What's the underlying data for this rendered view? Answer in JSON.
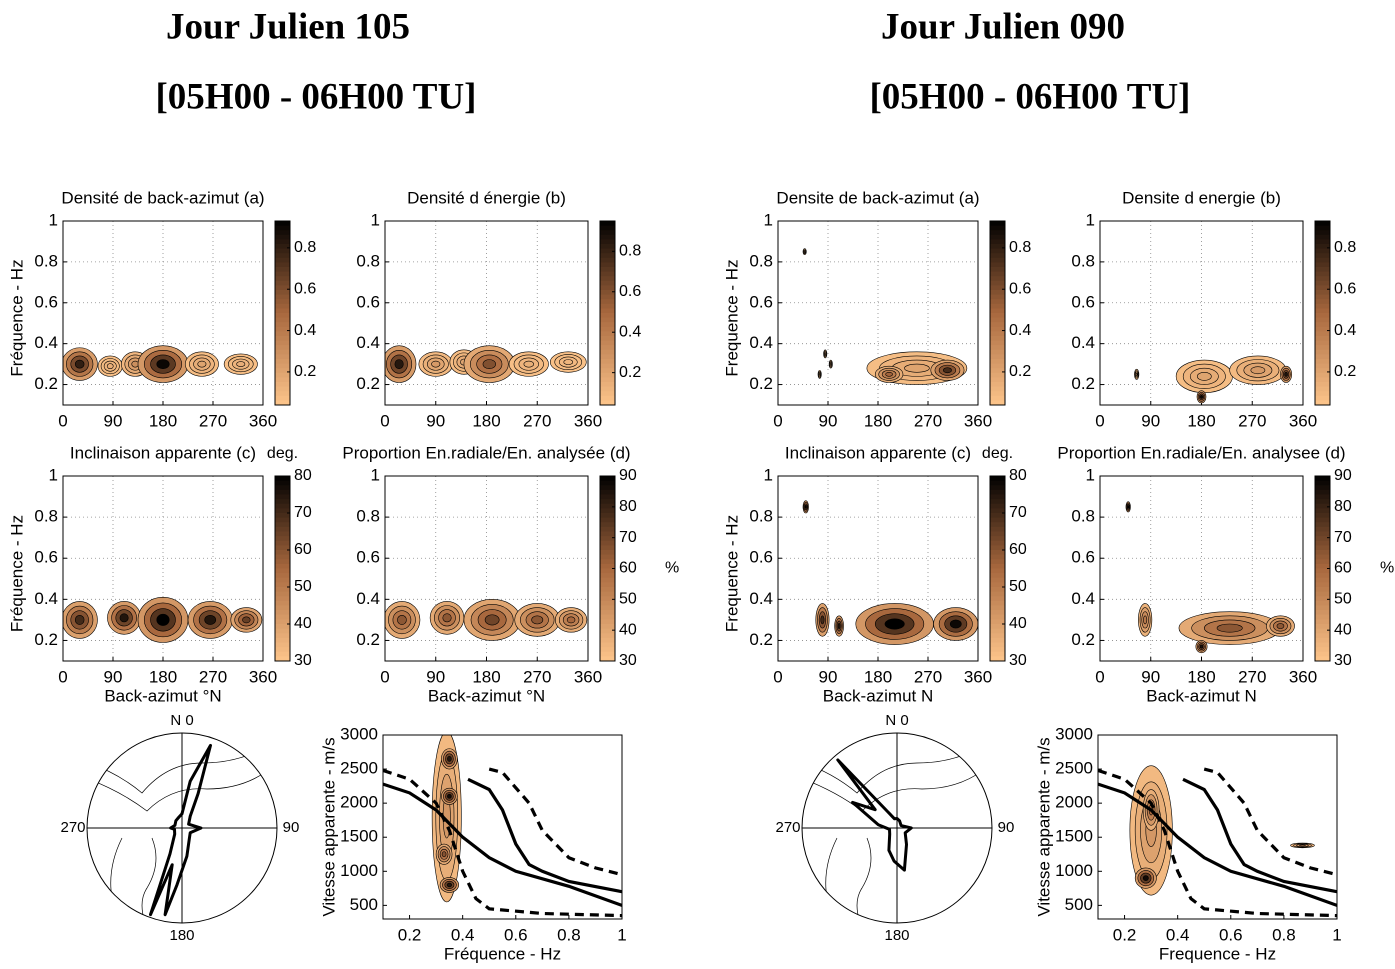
{
  "titles": [
    {
      "title": "Jour Julien 105",
      "subtitle": "[05H00 - 06H00 TU]"
    },
    {
      "title": "Jour Julien 090",
      "subtitle": "[05H00 - 06H00 TU]"
    }
  ],
  "chart_data": [
    {
      "type": "contour",
      "title": "Densité de back-azimut (a)",
      "ylabel": "Fréquence - Hz",
      "xlim": [
        0,
        360
      ],
      "xticks": [
        0,
        90,
        180,
        270,
        360
      ],
      "ylim": [
        0.1,
        1
      ],
      "yticks": [
        0.2,
        0.4,
        0.6,
        0.8,
        1
      ],
      "grid": true,
      "clim": [
        0.04,
        0.93
      ],
      "cticks": [
        0.2,
        0.4,
        0.6,
        0.8
      ],
      "colormap": [
        "#fdc58b",
        "#a8683e",
        "#000000"
      ],
      "blobs": [
        {
          "x": 30,
          "y": 0.3,
          "rx": 32,
          "ry": 0.08,
          "level": 0.8
        },
        {
          "x": 85,
          "y": 0.29,
          "rx": 22,
          "ry": 0.05,
          "level": 0.15
        },
        {
          "x": 130,
          "y": 0.3,
          "rx": 25,
          "ry": 0.06,
          "level": 0.3
        },
        {
          "x": 180,
          "y": 0.3,
          "rx": 45,
          "ry": 0.09,
          "level": 0.9
        },
        {
          "x": 250,
          "y": 0.3,
          "rx": 30,
          "ry": 0.06,
          "level": 0.2
        },
        {
          "x": 320,
          "y": 0.3,
          "rx": 30,
          "ry": 0.05,
          "level": 0.15
        }
      ]
    },
    {
      "type": "contour",
      "title": "Densité d énergie (b)",
      "xlim": [
        0,
        360
      ],
      "xticks": [
        0,
        90,
        180,
        270,
        360
      ],
      "ylim": [
        0.1,
        1
      ],
      "yticks": [
        0.2,
        0.4,
        0.6,
        0.8,
        1
      ],
      "grid": true,
      "clim": [
        0.04,
        0.95
      ],
      "cticks": [
        0.2,
        0.4,
        0.6,
        0.8
      ],
      "colormap": [
        "#fdc58b",
        "#a8683e",
        "#000000"
      ],
      "blobs": [
        {
          "x": 25,
          "y": 0.3,
          "rx": 30,
          "ry": 0.09,
          "level": 0.85
        },
        {
          "x": 90,
          "y": 0.3,
          "rx": 30,
          "ry": 0.06,
          "level": 0.25
        },
        {
          "x": 140,
          "y": 0.31,
          "rx": 25,
          "ry": 0.06,
          "level": 0.2
        },
        {
          "x": 185,
          "y": 0.3,
          "rx": 45,
          "ry": 0.09,
          "level": 0.6
        },
        {
          "x": 255,
          "y": 0.3,
          "rx": 35,
          "ry": 0.06,
          "level": 0.15
        },
        {
          "x": 325,
          "y": 0.31,
          "rx": 32,
          "ry": 0.05,
          "level": 0.12
        }
      ]
    },
    {
      "type": "contour",
      "title": "Inclinaison apparente (c)",
      "ylabel": "Fréquence - Hz",
      "xlabel": "Back-azimut °N",
      "xlim": [
        0,
        360
      ],
      "xticks": [
        0,
        90,
        180,
        270,
        360
      ],
      "ylim": [
        0.1,
        1
      ],
      "yticks": [
        0.2,
        0.4,
        0.6,
        0.8,
        1
      ],
      "grid": true,
      "clim": [
        30,
        80
      ],
      "cticks": [
        30,
        40,
        50,
        60,
        70,
        80
      ],
      "clabel": "deg.",
      "clabel_loc": "top",
      "colormap": [
        "#fdc58b",
        "#a8683e",
        "#000000"
      ],
      "blobs": [
        {
          "x": 30,
          "y": 0.3,
          "rx": 32,
          "ry": 0.09,
          "level": 70
        },
        {
          "x": 110,
          "y": 0.31,
          "rx": 30,
          "ry": 0.08,
          "level": 75
        },
        {
          "x": 180,
          "y": 0.3,
          "rx": 45,
          "ry": 0.11,
          "level": 80
        },
        {
          "x": 265,
          "y": 0.3,
          "rx": 40,
          "ry": 0.09,
          "level": 75
        },
        {
          "x": 330,
          "y": 0.3,
          "rx": 28,
          "ry": 0.06,
          "level": 65
        }
      ]
    },
    {
      "type": "contour",
      "title": "Proportion En.radiale/En. analysée (d)",
      "xlabel": "Back-azimut °N",
      "xlim": [
        0,
        360
      ],
      "xticks": [
        0,
        90,
        180,
        270,
        360
      ],
      "ylim": [
        0.1,
        1
      ],
      "yticks": [
        0.2,
        0.4,
        0.6,
        0.8,
        1
      ],
      "grid": true,
      "clim": [
        30,
        90
      ],
      "cticks": [
        30,
        40,
        50,
        60,
        70,
        80,
        90
      ],
      "clabel": "%",
      "clabel_loc": "right",
      "colormap": [
        "#fdc58b",
        "#a8683e",
        "#000000"
      ],
      "blobs": [
        {
          "x": 30,
          "y": 0.3,
          "rx": 32,
          "ry": 0.09,
          "level": 65
        },
        {
          "x": 110,
          "y": 0.31,
          "rx": 30,
          "ry": 0.08,
          "level": 65
        },
        {
          "x": 190,
          "y": 0.3,
          "rx": 50,
          "ry": 0.1,
          "level": 70
        },
        {
          "x": 270,
          "y": 0.3,
          "rx": 40,
          "ry": 0.08,
          "level": 65
        },
        {
          "x": 330,
          "y": 0.3,
          "rx": 28,
          "ry": 0.06,
          "level": 60
        }
      ]
    },
    {
      "type": "polar",
      "axis_labels": [
        "N 0",
        "90",
        "180",
        "270"
      ],
      "rlim": [
        0,
        1
      ],
      "rose": {
        "azimuth": [
          0,
          10,
          19,
          25,
          35,
          60,
          90,
          120,
          150,
          170,
          185,
          191,
          195,
          200,
          205,
          230,
          260,
          270,
          290,
          320,
          345
        ],
        "radius": [
          0.15,
          0.5,
          0.92,
          0.4,
          0.15,
          0.08,
          0.2,
          0.1,
          0.15,
          0.3,
          0.6,
          0.93,
          0.4,
          0.97,
          0.3,
          0.1,
          0.08,
          0.12,
          0.08,
          0.1,
          0.12
        ]
      }
    },
    {
      "type": "line",
      "xlabel": "Fréquence - Hz",
      "ylabel": "Vitesse apparente - m/s",
      "xlim": [
        0.1,
        1
      ],
      "xticks": [
        0.2,
        0.4,
        0.6,
        0.8,
        1
      ],
      "ylim": [
        300,
        3000
      ],
      "yticks": [
        500,
        1000,
        1500,
        2000,
        2500,
        3000
      ],
      "clim": [
        0,
        1
      ],
      "colormap": [
        "#fdc58b",
        "#a8683e",
        "#000000"
      ],
      "blobs": [
        {
          "x": 0.34,
          "y": 1800,
          "rx": 0.055,
          "ry": 1250,
          "level": 0.25
        },
        {
          "x": 0.35,
          "y": 2650,
          "rx": 0.03,
          "ry": 150,
          "level": 0.9
        },
        {
          "x": 0.35,
          "y": 2100,
          "rx": 0.03,
          "ry": 120,
          "level": 0.95
        },
        {
          "x": 0.33,
          "y": 1250,
          "rx": 0.03,
          "ry": 150,
          "level": 0.6
        },
        {
          "x": 0.35,
          "y": 800,
          "rx": 0.035,
          "ry": 110,
          "level": 0.9
        }
      ],
      "series": [
        {
          "color": "#000000",
          "linestyle": "dashed",
          "x": [
            0.1,
            0.2,
            0.3,
            0.35,
            0.4,
            0.45,
            0.5,
            0.7,
            1
          ],
          "values": [
            2480,
            2350,
            2000,
            1600,
            1000,
            600,
            450,
            380,
            350
          ]
        },
        {
          "color": "#000000",
          "linestyle": "solid",
          "x": [
            0.1,
            0.2,
            0.3,
            0.4,
            0.5,
            0.6,
            0.8,
            1
          ],
          "values": [
            2280,
            2150,
            1900,
            1500,
            1200,
            1000,
            780,
            500
          ]
        },
        {
          "color": "#000000",
          "linestyle": "solid",
          "x": [
            0.42,
            0.5,
            0.55,
            0.6,
            0.65,
            0.7,
            0.8,
            1
          ],
          "values": [
            2350,
            2200,
            1900,
            1400,
            1100,
            1000,
            850,
            700
          ]
        },
        {
          "color": "#000000",
          "linestyle": "dashed",
          "x": [
            0.5,
            0.55,
            0.65,
            0.7,
            0.8,
            0.9,
            1
          ],
          "values": [
            2500,
            2450,
            2000,
            1600,
            1200,
            1050,
            950
          ]
        }
      ]
    },
    {
      "type": "contour",
      "title": "Densite de back-azimut (a)",
      "ylabel": "Frequence - Hz",
      "xlim": [
        0,
        360
      ],
      "xticks": [
        0,
        90,
        180,
        270,
        360
      ],
      "ylim": [
        0.1,
        1
      ],
      "yticks": [
        0.2,
        0.4,
        0.6,
        0.8,
        1
      ],
      "grid": true,
      "clim": [
        0.04,
        0.93
      ],
      "cticks": [
        0.2,
        0.4,
        0.6,
        0.8
      ],
      "colormap": [
        "#fdc58b",
        "#a8683e",
        "#000000"
      ],
      "blobs": [
        {
          "x": 48,
          "y": 0.85,
          "rx": 3,
          "ry": 0.015,
          "level": 0.12
        },
        {
          "x": 75,
          "y": 0.25,
          "rx": 3,
          "ry": 0.02,
          "level": 0.12
        },
        {
          "x": 85,
          "y": 0.35,
          "rx": 3,
          "ry": 0.02,
          "level": 0.12
        },
        {
          "x": 95,
          "y": 0.3,
          "rx": 3,
          "ry": 0.02,
          "level": 0.12
        },
        {
          "x": 250,
          "y": 0.28,
          "rx": 90,
          "ry": 0.08,
          "level": 0.2
        },
        {
          "x": 200,
          "y": 0.25,
          "rx": 25,
          "ry": 0.04,
          "level": 0.5
        },
        {
          "x": 305,
          "y": 0.27,
          "rx": 30,
          "ry": 0.05,
          "level": 0.75
        }
      ]
    },
    {
      "type": "contour",
      "title": "Densite d energie (b)",
      "xlim": [
        0,
        360
      ],
      "xticks": [
        0,
        90,
        180,
        270,
        360
      ],
      "ylim": [
        0.1,
        1
      ],
      "yticks": [
        0.2,
        0.4,
        0.6,
        0.8,
        1
      ],
      "grid": true,
      "clim": [
        0.04,
        0.93
      ],
      "cticks": [
        0.2,
        0.4,
        0.6,
        0.8
      ],
      "colormap": [
        "#fdc58b",
        "#a8683e",
        "#000000"
      ],
      "blobs": [
        {
          "x": 65,
          "y": 0.25,
          "rx": 4,
          "ry": 0.025,
          "level": 0.15
        },
        {
          "x": 185,
          "y": 0.24,
          "rx": 50,
          "ry": 0.08,
          "level": 0.2
        },
        {
          "x": 180,
          "y": 0.14,
          "rx": 8,
          "ry": 0.03,
          "level": 0.9
        },
        {
          "x": 280,
          "y": 0.27,
          "rx": 50,
          "ry": 0.07,
          "level": 0.25
        },
        {
          "x": 330,
          "y": 0.25,
          "rx": 10,
          "ry": 0.04,
          "level": 0.85
        }
      ]
    },
    {
      "type": "contour",
      "title": "Inclinaison apparente (c)",
      "ylabel": "Frequence - Hz",
      "xlabel": "Back-azimut N",
      "xlim": [
        0,
        360
      ],
      "xticks": [
        0,
        90,
        180,
        270,
        360
      ],
      "ylim": [
        0.1,
        1
      ],
      "yticks": [
        0.2,
        0.4,
        0.6,
        0.8,
        1
      ],
      "grid": true,
      "clim": [
        30,
        80
      ],
      "cticks": [
        30,
        40,
        50,
        60,
        70,
        80
      ],
      "clabel": "deg.",
      "clabel_loc": "top",
      "colormap": [
        "#fdc58b",
        "#a8683e",
        "#000000"
      ],
      "blobs": [
        {
          "x": 50,
          "y": 0.85,
          "rx": 5,
          "ry": 0.03,
          "level": 80
        },
        {
          "x": 80,
          "y": 0.3,
          "rx": 12,
          "ry": 0.08,
          "level": 70
        },
        {
          "x": 110,
          "y": 0.27,
          "rx": 8,
          "ry": 0.05,
          "level": 75
        },
        {
          "x": 210,
          "y": 0.28,
          "rx": 70,
          "ry": 0.1,
          "level": 80
        },
        {
          "x": 320,
          "y": 0.28,
          "rx": 40,
          "ry": 0.08,
          "level": 78
        }
      ]
    },
    {
      "type": "contour",
      "title": "Proportion En.radiale/En. analysee (d)",
      "xlabel": "Back-azimut N",
      "xlim": [
        0,
        360
      ],
      "xticks": [
        0,
        90,
        180,
        270,
        360
      ],
      "ylim": [
        0.1,
        1
      ],
      "yticks": [
        0.2,
        0.4,
        0.6,
        0.8,
        1
      ],
      "grid": true,
      "clim": [
        30,
        90
      ],
      "cticks": [
        30,
        40,
        50,
        60,
        70,
        80,
        90
      ],
      "clabel": "%",
      "clabel_loc": "right",
      "colormap": [
        "#fdc58b",
        "#a8683e",
        "#000000"
      ],
      "blobs": [
        {
          "x": 50,
          "y": 0.85,
          "rx": 4,
          "ry": 0.025,
          "level": 90
        },
        {
          "x": 80,
          "y": 0.3,
          "rx": 12,
          "ry": 0.08,
          "level": 55
        },
        {
          "x": 230,
          "y": 0.26,
          "rx": 90,
          "ry": 0.08,
          "level": 65
        },
        {
          "x": 180,
          "y": 0.17,
          "rx": 10,
          "ry": 0.03,
          "level": 85
        },
        {
          "x": 320,
          "y": 0.27,
          "rx": 25,
          "ry": 0.05,
          "level": 65
        }
      ]
    },
    {
      "type": "polar",
      "axis_labels": [
        "N 0",
        "90",
        "180",
        "270"
      ],
      "rlim": [
        0,
        1
      ],
      "rose": {
        "azimuth": [
          0,
          20,
          60,
          90,
          120,
          150,
          170,
          185,
          200,
          230,
          260,
          280,
          300,
          310,
          319,
          330,
          345
        ],
        "radius": [
          0.1,
          0.08,
          0.05,
          0.15,
          0.1,
          0.2,
          0.45,
          0.35,
          0.25,
          0.1,
          0.08,
          0.2,
          0.54,
          0.3,
          0.95,
          0.2,
          0.1
        ]
      }
    },
    {
      "type": "line",
      "xlabel": "Frequence - Hz",
      "ylabel": "Vitesse apparente - m/s",
      "xlim": [
        0.1,
        1
      ],
      "xticks": [
        0.2,
        0.4,
        0.6,
        0.8,
        1
      ],
      "ylim": [
        300,
        3000
      ],
      "yticks": [
        500,
        1000,
        1500,
        2000,
        2500,
        3000
      ],
      "clim": [
        0,
        1
      ],
      "colormap": [
        "#fdc58b",
        "#a8683e",
        "#000000"
      ],
      "blobs": [
        {
          "x": 0.3,
          "y": 1600,
          "rx": 0.08,
          "ry": 950,
          "level": 0.25
        },
        {
          "x": 0.3,
          "y": 1900,
          "rx": 0.03,
          "ry": 300,
          "level": 0.5
        },
        {
          "x": 0.28,
          "y": 900,
          "rx": 0.04,
          "ry": 150,
          "level": 0.95
        },
        {
          "x": 0.87,
          "y": 1380,
          "rx": 0.045,
          "ry": 35,
          "level": 0.3
        }
      ],
      "series": [
        {
          "color": "#000000",
          "linestyle": "dashed",
          "x": [
            0.1,
            0.2,
            0.3,
            0.35,
            0.4,
            0.45,
            0.5,
            0.7,
            1
          ],
          "values": [
            2480,
            2350,
            2000,
            1600,
            1000,
            600,
            450,
            380,
            350
          ]
        },
        {
          "color": "#000000",
          "linestyle": "solid",
          "x": [
            0.1,
            0.2,
            0.3,
            0.4,
            0.5,
            0.6,
            0.8,
            1
          ],
          "values": [
            2280,
            2150,
            1900,
            1500,
            1200,
            1000,
            780,
            500
          ]
        },
        {
          "color": "#000000",
          "linestyle": "solid",
          "x": [
            0.42,
            0.5,
            0.55,
            0.6,
            0.65,
            0.7,
            0.8,
            1
          ],
          "values": [
            2350,
            2200,
            1900,
            1400,
            1100,
            1000,
            850,
            700
          ]
        },
        {
          "color": "#000000",
          "linestyle": "dashed",
          "x": [
            0.5,
            0.55,
            0.65,
            0.7,
            0.8,
            0.9,
            1
          ],
          "values": [
            2500,
            2450,
            2000,
            1600,
            1200,
            1050,
            950
          ]
        }
      ]
    }
  ]
}
